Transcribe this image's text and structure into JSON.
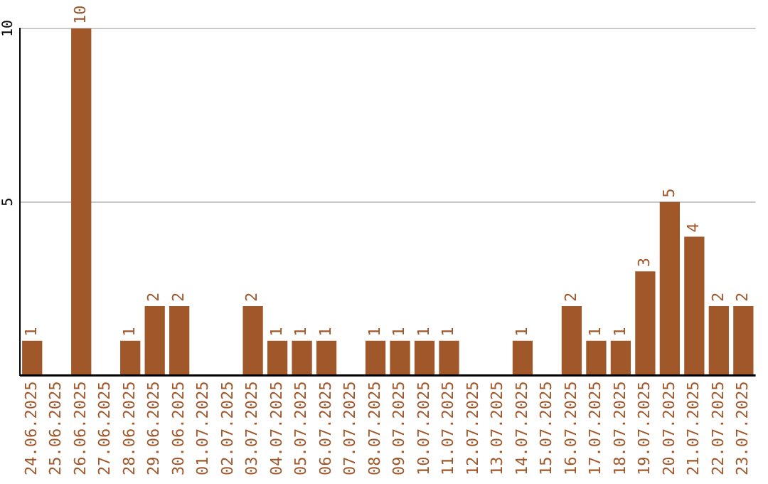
{
  "chart_data": {
    "type": "bar",
    "categories": [
      "24.06.2025",
      "25.06.2025",
      "26.06.2025",
      "27.06.2025",
      "28.06.2025",
      "29.06.2025",
      "30.06.2025",
      "01.07.2025",
      "02.07.2025",
      "03.07.2025",
      "04.07.2025",
      "05.07.2025",
      "06.07.2025",
      "07.07.2025",
      "08.07.2025",
      "09.07.2025",
      "10.07.2025",
      "11.07.2025",
      "12.07.2025",
      "13.07.2025",
      "14.07.2025",
      "15.07.2025",
      "16.07.2025",
      "17.07.2025",
      "18.07.2025",
      "19.07.2025",
      "20.07.2025",
      "21.07.2025",
      "22.07.2025",
      "23.07.2025"
    ],
    "values": [
      1,
      0,
      10,
      0,
      1,
      2,
      2,
      0,
      0,
      2,
      1,
      1,
      1,
      0,
      1,
      1,
      1,
      1,
      0,
      0,
      1,
      0,
      2,
      1,
      1,
      3,
      5,
      4,
      2,
      2
    ],
    "value_labels": [
      "1",
      null,
      "10",
      null,
      "1",
      "2",
      "2",
      null,
      null,
      "2",
      "1",
      "1",
      "1",
      null,
      "1",
      "1",
      "1",
      "1",
      null,
      null,
      "1",
      null,
      "2",
      "1",
      "1",
      "3",
      "5",
      "4",
      "2",
      "2"
    ],
    "color": "#a0572a",
    "ylim": [
      0,
      10
    ],
    "yticks": [
      {
        "value": 0,
        "label": null
      },
      5,
      10
    ],
    "grid": "y",
    "legend": false
  }
}
